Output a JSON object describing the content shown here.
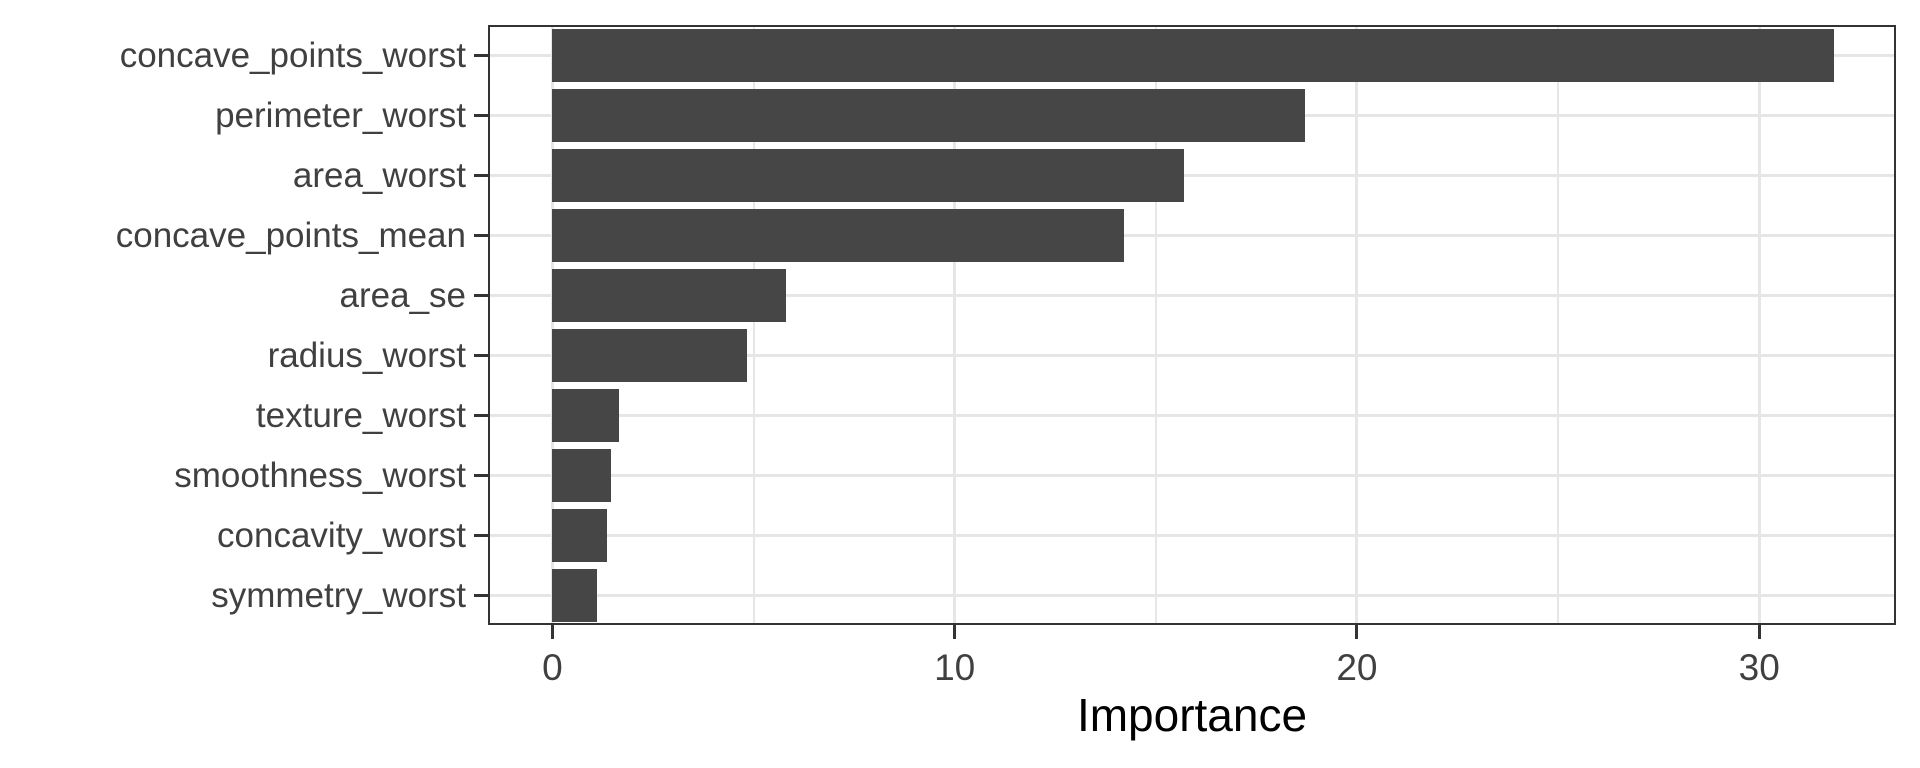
{
  "chart_data": {
    "type": "bar",
    "orientation": "horizontal",
    "title": "",
    "xlabel": "Importance",
    "ylabel": "",
    "categories": [
      "concave_points_worst",
      "perimeter_worst",
      "area_worst",
      "concave_points_mean",
      "area_se",
      "radius_worst",
      "texture_worst",
      "smoothness_worst",
      "concavity_worst",
      "symmetry_worst"
    ],
    "values": [
      31.85,
      18.7,
      15.7,
      14.2,
      5.8,
      4.85,
      1.65,
      1.45,
      1.35,
      1.1
    ],
    "xlim": [
      -1.6,
      33.4
    ],
    "x_major_ticks": [
      0,
      10,
      20,
      30
    ],
    "x_tick_labels": [
      "0",
      "10",
      "20",
      "30"
    ],
    "x_minor_gridlines": [
      5,
      15,
      25
    ],
    "grid": true,
    "legend": "none",
    "bar_color": "#464647",
    "gridline_color": "#e6e6e6",
    "panel_border_color": "#333333",
    "axis_text_color": "#404040",
    "title_color": "#000000"
  }
}
